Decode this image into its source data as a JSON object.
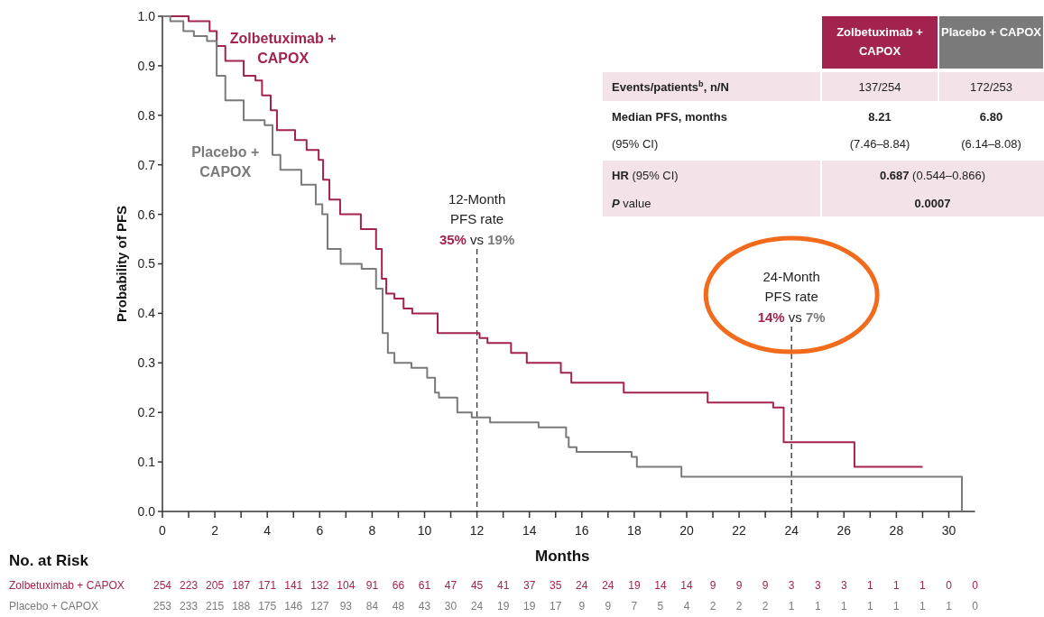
{
  "chart_data": {
    "type": "step",
    "xlabel": "Months",
    "ylabel": "Probability of PFS",
    "xlim": [
      0,
      31
    ],
    "ylim": [
      0,
      1
    ],
    "xticks": [
      0,
      {
        "value": 1,
        "label": null
      },
      2,
      {
        "value": 3,
        "label": null
      },
      4,
      {
        "value": 5,
        "label": null
      },
      6,
      {
        "value": 7,
        "label": null
      },
      8,
      {
        "value": 9,
        "label": null
      },
      10,
      {
        "value": 11,
        "label": null
      },
      12,
      {
        "value": 13,
        "label": null
      },
      14,
      {
        "value": 15,
        "label": null
      },
      16,
      {
        "value": 17,
        "label": null
      },
      18,
      {
        "value": 19,
        "label": null
      },
      20,
      {
        "value": 21,
        "label": null
      },
      22,
      {
        "value": 23,
        "label": null
      },
      24,
      {
        "value": 25,
        "label": null
      },
      26,
      {
        "value": 27,
        "label": null
      },
      28,
      {
        "value": 29,
        "label": null
      },
      30
    ],
    "yticks": [
      {
        "value": 0,
        "label": "0.0"
      },
      0.1,
      0.2,
      0.3,
      0.4,
      0.5,
      0.6,
      0.7,
      0.8,
      0.9,
      {
        "value": 1,
        "label": "1.0"
      }
    ],
    "grid": false,
    "line_style": "solid",
    "series": [
      {
        "name": "Zolbetuximab + CAPOX",
        "color": "#a3234f",
        "x": [
          0,
          1,
          1.8,
          2.07,
          2.4,
          3.1,
          3.55,
          3.8,
          4.13,
          4.37,
          5.06,
          5.5,
          5.96,
          6.13,
          6.37,
          6.78,
          7.57,
          7.9,
          8.15,
          8.37,
          8.54,
          8.85,
          9.2,
          9.53,
          10.4,
          10.5,
          12.1,
          12.4,
          13.3,
          13.9,
          15.2,
          15.6,
          17.6,
          20.8,
          23.3,
          23.7,
          26.4,
          29.0
        ],
        "values": [
          1,
          0.99,
          0.97,
          0.94,
          0.91,
          0.88,
          0.87,
          0.84,
          0.81,
          0.77,
          0.75,
          0.73,
          0.71,
          0.67,
          0.63,
          0.6,
          0.57,
          0.57,
          0.53,
          0.47,
          0.44,
          0.43,
          0.41,
          0.4,
          0.4,
          0.36,
          0.35,
          0.34,
          0.32,
          0.3,
          0.28,
          0.26,
          0.24,
          0.22,
          0.21,
          0.14,
          0.09,
          0.09
        ]
      },
      {
        "name": "Placebo + CAPOX",
        "color": "#7a7a7a",
        "x": [
          0,
          0.3,
          0.8,
          1.2,
          1.7,
          2.07,
          2.4,
          3.1,
          3.9,
          4.2,
          4.5,
          5.3,
          5.85,
          6.1,
          6.3,
          6.8,
          7.6,
          8.15,
          8.4,
          8.6,
          8.85,
          9.5,
          10.1,
          10.4,
          10.55,
          11.25,
          11.8,
          12.5,
          14.35,
          15.25,
          15.4,
          15.5,
          15.8,
          17.9,
          18.1,
          19.8,
          30.5
        ],
        "values": [
          1,
          0.99,
          0.97,
          0.96,
          0.95,
          0.88,
          0.83,
          0.79,
          0.78,
          0.72,
          0.69,
          0.66,
          0.62,
          0.6,
          0.53,
          0.5,
          0.49,
          0.45,
          0.36,
          0.32,
          0.3,
          0.29,
          0.27,
          0.24,
          0.23,
          0.2,
          0.19,
          0.18,
          0.17,
          0.17,
          0.15,
          0.13,
          0.12,
          0.11,
          0.09,
          0.07,
          0
        ]
      }
    ],
    "ref_lines": [
      {
        "axis": "x",
        "value": 12,
        "label": "12-Month PFS rate",
        "line_style": "dashed",
        "color": "#333333"
      },
      {
        "axis": "x",
        "value": 24,
        "label": "24-Month PFS rate",
        "line_style": "dashed",
        "color": "#333333"
      }
    ],
    "annotations": [
      "35% vs 19%",
      "14% vs 7%",
      "Events/patients$^{b}$, n/N",
      "137/254",
      "172/253",
      "Median PFS, months",
      "8.21",
      "6.80",
      "(95% CI)",
      "(7.46–8.84)",
      "(6.14–8.08)",
      "HR (95% CI)",
      "0.687 (0.544–0.866)",
      "P value",
      "0.0007",
      "No. at Risk",
      "254 223 205 187 171 141 132 104 91 66 61 47 45 41 37 35 24 24 19 14 14 9 9 9 3 3 3 1 1 1 0 0",
      "253 233 215 188 175 146 127 93 84 48 43 30 24 19 19 17 9 9 7 5 4 2 2 2 1 1 1 1 1 1 1 0"
    ]
  }
}
